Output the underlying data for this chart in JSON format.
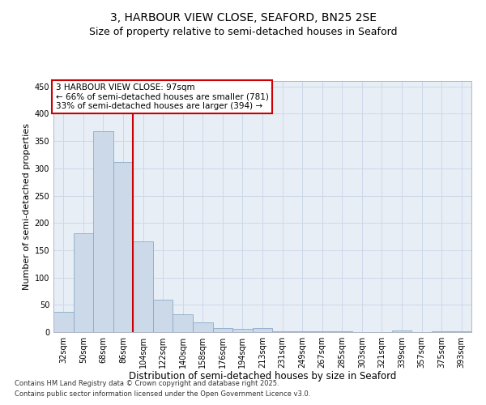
{
  "title1": "3, HARBOUR VIEW CLOSE, SEAFORD, BN25 2SE",
  "title2": "Size of property relative to semi-detached houses in Seaford",
  "xlabel": "Distribution of semi-detached houses by size in Seaford",
  "ylabel": "Number of semi-detached properties",
  "categories": [
    "32sqm",
    "50sqm",
    "68sqm",
    "86sqm",
    "104sqm",
    "122sqm",
    "140sqm",
    "158sqm",
    "176sqm",
    "194sqm",
    "213sqm",
    "231sqm",
    "249sqm",
    "267sqm",
    "285sqm",
    "303sqm",
    "321sqm",
    "339sqm",
    "357sqm",
    "375sqm",
    "393sqm"
  ],
  "values": [
    37,
    181,
    368,
    311,
    166,
    60,
    32,
    18,
    8,
    6,
    8,
    2,
    1,
    1,
    1,
    0,
    0,
    3,
    0,
    2,
    1
  ],
  "bar_color": "#ccd9e8",
  "bar_edge_color": "#8aaac8",
  "grid_color": "#ccd8e8",
  "background_color": "#e8eef6",
  "red_line_x": 3.5,
  "annotation_text": "3 HARBOUR VIEW CLOSE: 97sqm\n← 66% of semi-detached houses are smaller (781)\n33% of semi-detached houses are larger (394) →",
  "annotation_box_color": "#ffffff",
  "annotation_box_edge": "#cc0000",
  "vline_color": "#cc0000",
  "footnote1": "Contains HM Land Registry data © Crown copyright and database right 2025.",
  "footnote2": "Contains public sector information licensed under the Open Government Licence v3.0.",
  "ylim": [
    0,
    460
  ],
  "yticks": [
    0,
    50,
    100,
    150,
    200,
    250,
    300,
    350,
    400,
    450
  ],
  "title1_fontsize": 10,
  "title2_fontsize": 9,
  "xlabel_fontsize": 8.5,
  "ylabel_fontsize": 8,
  "tick_fontsize": 7,
  "annot_fontsize": 7.5,
  "footnote_fontsize": 6
}
